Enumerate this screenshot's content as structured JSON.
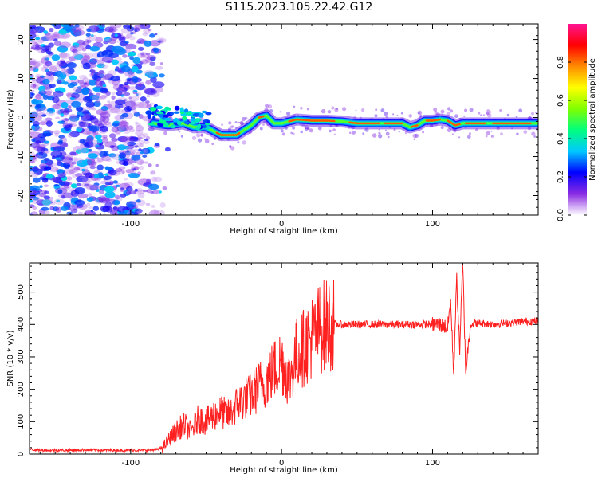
{
  "title": "S115.2023.105.22.42.G12",
  "chart_data": [
    {
      "type": "heatmap",
      "xlabel": "Height of straight line (km)",
      "ylabel": "Frequency (Hz)",
      "xlim": [
        -167,
        170
      ],
      "ylim": [
        -25,
        24
      ],
      "xticks": [
        -100,
        0,
        100
      ],
      "yticks": [
        -20,
        -10,
        0,
        10,
        20
      ],
      "colorbar": {
        "label": "Normalized spectral amplitude",
        "range": [
          0.0,
          1.0
        ],
        "ticks": [
          0.0,
          0.2,
          0.4,
          0.6,
          0.8
        ],
        "tick_labels": [
          "0.0",
          "0.2",
          "0.4",
          "0.6",
          "0.8"
        ],
        "colormap": [
          "#ffffff",
          "#8a2be2",
          "#0000ff",
          "#00c8ff",
          "#00ff7f",
          "#7fff00",
          "#ffff00",
          "#ff8c00",
          "#ff0000",
          "#ff1493"
        ]
      },
      "ridge": {
        "x": [
          -85,
          -75,
          -65,
          -58,
          -50,
          -40,
          -30,
          -20,
          -15,
          -10,
          -5,
          0,
          10,
          20,
          30,
          40,
          50,
          60,
          70,
          80,
          85,
          90,
          95,
          100,
          105,
          110,
          115,
          120,
          130,
          140,
          150,
          160,
          170
        ],
        "frequency": [
          -1.5,
          -2,
          -1.5,
          -2.5,
          -2.5,
          -4.5,
          -4.5,
          -2,
          0,
          0.5,
          -1.5,
          -1.5,
          -0.5,
          -0.8,
          -0.8,
          -1,
          -1.5,
          -1.5,
          -1.5,
          -1.5,
          -2.5,
          -2,
          -0.8,
          -0.8,
          -0.5,
          -0.8,
          -2,
          -1.5,
          -1.5,
          -1.5,
          -1.5,
          -1.5,
          -1.5
        ]
      },
      "noise_region": {
        "x_from": -167,
        "x_to": -80,
        "description": "broadband scattered low-amplitude spectral noise"
      }
    },
    {
      "type": "line",
      "xlabel": "Height of straight line (km)",
      "ylabel": "SNR (10 * v/v)",
      "xlim": [
        -167,
        170
      ],
      "ylim": [
        0,
        590
      ],
      "xticks": [
        -100,
        0,
        100
      ],
      "yticks": [
        0,
        100,
        200,
        300,
        400,
        500
      ],
      "color": "#ff2020",
      "series": [
        {
          "x": [
            -167,
            -160,
            -150,
            -140,
            -130,
            -120,
            -110,
            -100,
            -90,
            -82,
            -78,
            -72,
            -68,
            -64,
            -60,
            -55,
            -50,
            -45,
            -40,
            -35,
            -30,
            -25,
            -20,
            -15,
            -10,
            -5,
            0,
            5,
            10,
            15,
            20,
            25,
            30,
            40,
            50,
            60,
            70,
            80,
            90,
            100,
            105,
            110,
            112,
            114,
            116,
            118,
            120,
            122,
            125,
            130,
            140,
            150,
            160,
            170
          ],
          "y": [
            15,
            12,
            12,
            12,
            13,
            12,
            12,
            12,
            12,
            14,
            25,
            60,
            80,
            90,
            70,
            110,
            100,
            120,
            130,
            120,
            150,
            170,
            180,
            210,
            230,
            260,
            290,
            230,
            310,
            330,
            360,
            390,
            400,
            400,
            400,
            400,
            400,
            400,
            400,
            400,
            400,
            390,
            470,
            250,
            540,
            320,
            590,
            250,
            400,
            405,
            400,
            405,
            410,
            410
          ]
        }
      ]
    }
  ]
}
